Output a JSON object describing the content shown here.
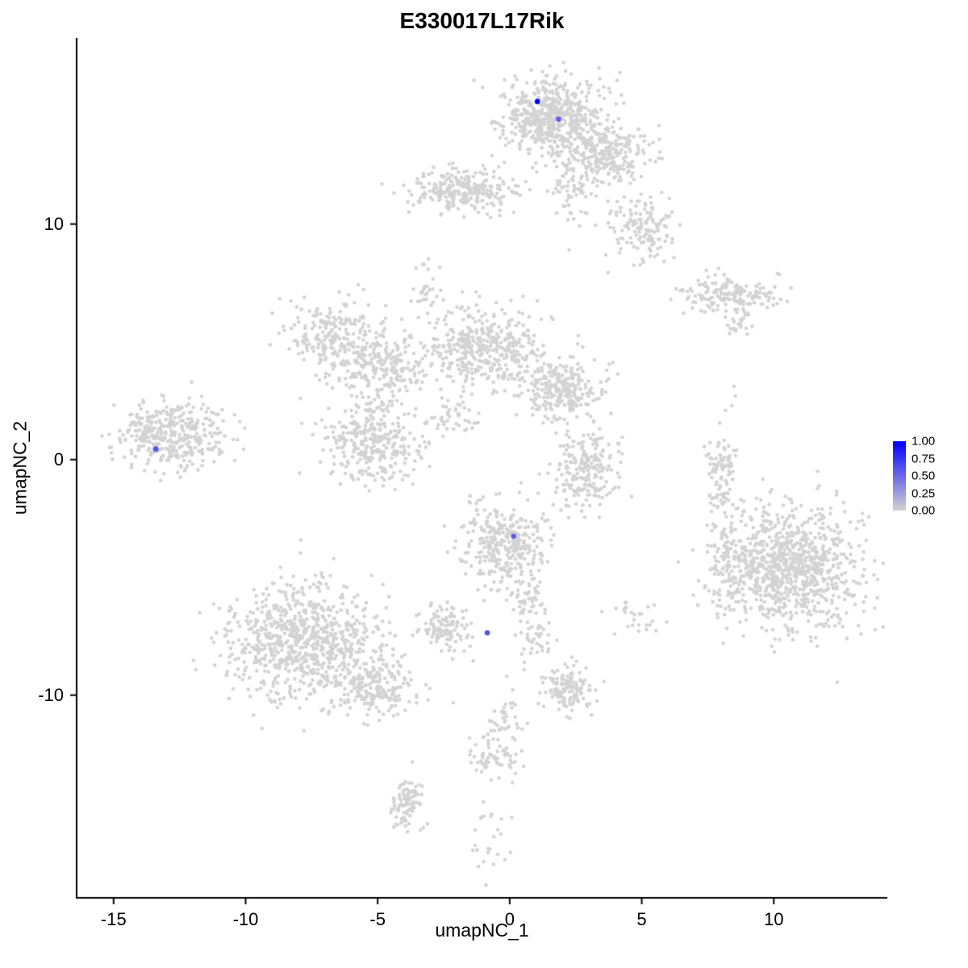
{
  "chart_data": {
    "type": "scatter",
    "title": "E330017L17Rik",
    "xlabel": "umapNC_1",
    "ylabel": "umapNC_2",
    "xlim": [
      -16.4,
      14.3
    ],
    "ylim": [
      -18.6,
      17.9
    ],
    "x_ticks": [
      -15,
      -10,
      -5,
      0,
      5,
      10
    ],
    "y_ticks": [
      10,
      0,
      -10
    ],
    "grid": false,
    "axis_color": "#000000",
    "point_color_low": "#d3d3d3",
    "point_color_high": "#0000ff",
    "legend": {
      "position": "right",
      "labels": [
        "1.00",
        "0.75",
        "0.50",
        "0.25",
        "0.00"
      ]
    },
    "cluster_fields": [
      "cx",
      "cy",
      "sx",
      "sy",
      "n"
    ],
    "background_clusters": [
      [
        1.6,
        14.6,
        0.95,
        0.85,
        560
      ],
      [
        3.6,
        13.0,
        0.9,
        0.7,
        260
      ],
      [
        5.0,
        9.8,
        0.6,
        0.7,
        140
      ],
      [
        2.3,
        11.3,
        0.35,
        0.8,
        60
      ],
      [
        -1.7,
        11.4,
        1.05,
        0.45,
        260
      ],
      [
        8.3,
        7.0,
        0.95,
        0.35,
        160
      ],
      [
        8.7,
        5.9,
        0.3,
        0.3,
        25
      ],
      [
        -6.6,
        5.1,
        0.9,
        0.8,
        260
      ],
      [
        -4.7,
        3.9,
        0.8,
        0.7,
        170
      ],
      [
        -1.0,
        4.7,
        1.1,
        0.85,
        420
      ],
      [
        1.9,
        3.0,
        0.75,
        0.75,
        260
      ],
      [
        -5.2,
        0.7,
        0.95,
        0.9,
        320
      ],
      [
        -3.3,
        7.2,
        0.25,
        0.7,
        30
      ],
      [
        -2.1,
        1.8,
        0.55,
        0.35,
        40
      ],
      [
        -12.8,
        1.0,
        1.05,
        0.75,
        380
      ],
      [
        2.9,
        -0.4,
        0.65,
        0.85,
        210
      ],
      [
        8.0,
        -0.6,
        0.3,
        0.85,
        90
      ],
      [
        -0.2,
        -3.7,
        0.8,
        0.85,
        330
      ],
      [
        0.6,
        -5.9,
        0.3,
        0.5,
        45
      ],
      [
        10.6,
        -4.6,
        1.35,
        1.25,
        950
      ],
      [
        8.2,
        -3.9,
        0.4,
        1.1,
        80
      ],
      [
        -7.8,
        -7.8,
        1.5,
        1.2,
        800
      ],
      [
        -5.0,
        -9.8,
        0.8,
        0.6,
        180
      ],
      [
        -2.5,
        -7.2,
        0.45,
        0.45,
        110
      ],
      [
        2.2,
        -9.7,
        0.5,
        0.45,
        130
      ],
      [
        0.9,
        -7.6,
        0.4,
        0.6,
        40
      ],
      [
        -0.5,
        -12.4,
        0.5,
        0.6,
        70
      ],
      [
        -0.2,
        -10.9,
        0.4,
        0.5,
        30
      ],
      [
        -3.9,
        -14.7,
        0.35,
        0.55,
        90
      ],
      [
        -0.8,
        -15.8,
        0.4,
        0.8,
        25
      ],
      [
        4.8,
        -6.6,
        0.5,
        0.4,
        25
      ],
      [
        8.5,
        2.4,
        0.25,
        0.25,
        4
      ]
    ],
    "expressing_cells": [
      {
        "x": 1.05,
        "y": 15.2,
        "value": 1.0
      },
      {
        "x": 1.85,
        "y": 14.45,
        "value": 0.55
      },
      {
        "x": -13.4,
        "y": 0.45,
        "value": 0.6
      },
      {
        "x": 0.15,
        "y": -3.25,
        "value": 0.55
      },
      {
        "x": -0.85,
        "y": -7.35,
        "value": 0.6
      }
    ]
  }
}
